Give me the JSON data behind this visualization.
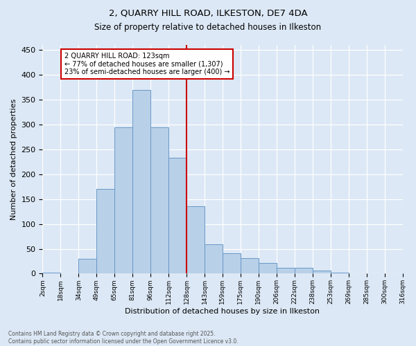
{
  "title1": "2, QUARRY HILL ROAD, ILKESTON, DE7 4DA",
  "title2": "Size of property relative to detached houses in Ilkeston",
  "xlabel": "Distribution of detached houses by size in Ilkeston",
  "ylabel": "Number of detached properties",
  "bin_labels": [
    "2sqm",
    "18sqm",
    "34sqm",
    "49sqm",
    "65sqm",
    "81sqm",
    "96sqm",
    "112sqm",
    "128sqm",
    "143sqm",
    "159sqm",
    "175sqm",
    "190sqm",
    "206sqm",
    "222sqm",
    "238sqm",
    "253sqm",
    "269sqm",
    "285sqm",
    "300sqm",
    "316sqm"
  ],
  "bar_heights": [
    2,
    0,
    30,
    170,
    295,
    370,
    295,
    233,
    135,
    59,
    41,
    31,
    22,
    12,
    12,
    6,
    2,
    1,
    0,
    0
  ],
  "bar_color": "#b8d0e8",
  "bar_edge_color": "#6898c8",
  "vline_x": 8,
  "vline_color": "#cc0000",
  "annotation_title": "2 QUARRY HILL ROAD: 123sqm",
  "annotation_line1": "← 77% of detached houses are smaller (1,307)",
  "annotation_line2": "23% of semi-detached houses are larger (400) →",
  "annotation_box_color": "#ffffff",
  "annotation_box_edge": "#cc0000",
  "ylim": [
    0,
    460
  ],
  "background_color": "#dce8f5",
  "footer1": "Contains HM Land Registry data © Crown copyright and database right 2025.",
  "footer2": "Contains public sector information licensed under the Open Government Licence v3.0."
}
